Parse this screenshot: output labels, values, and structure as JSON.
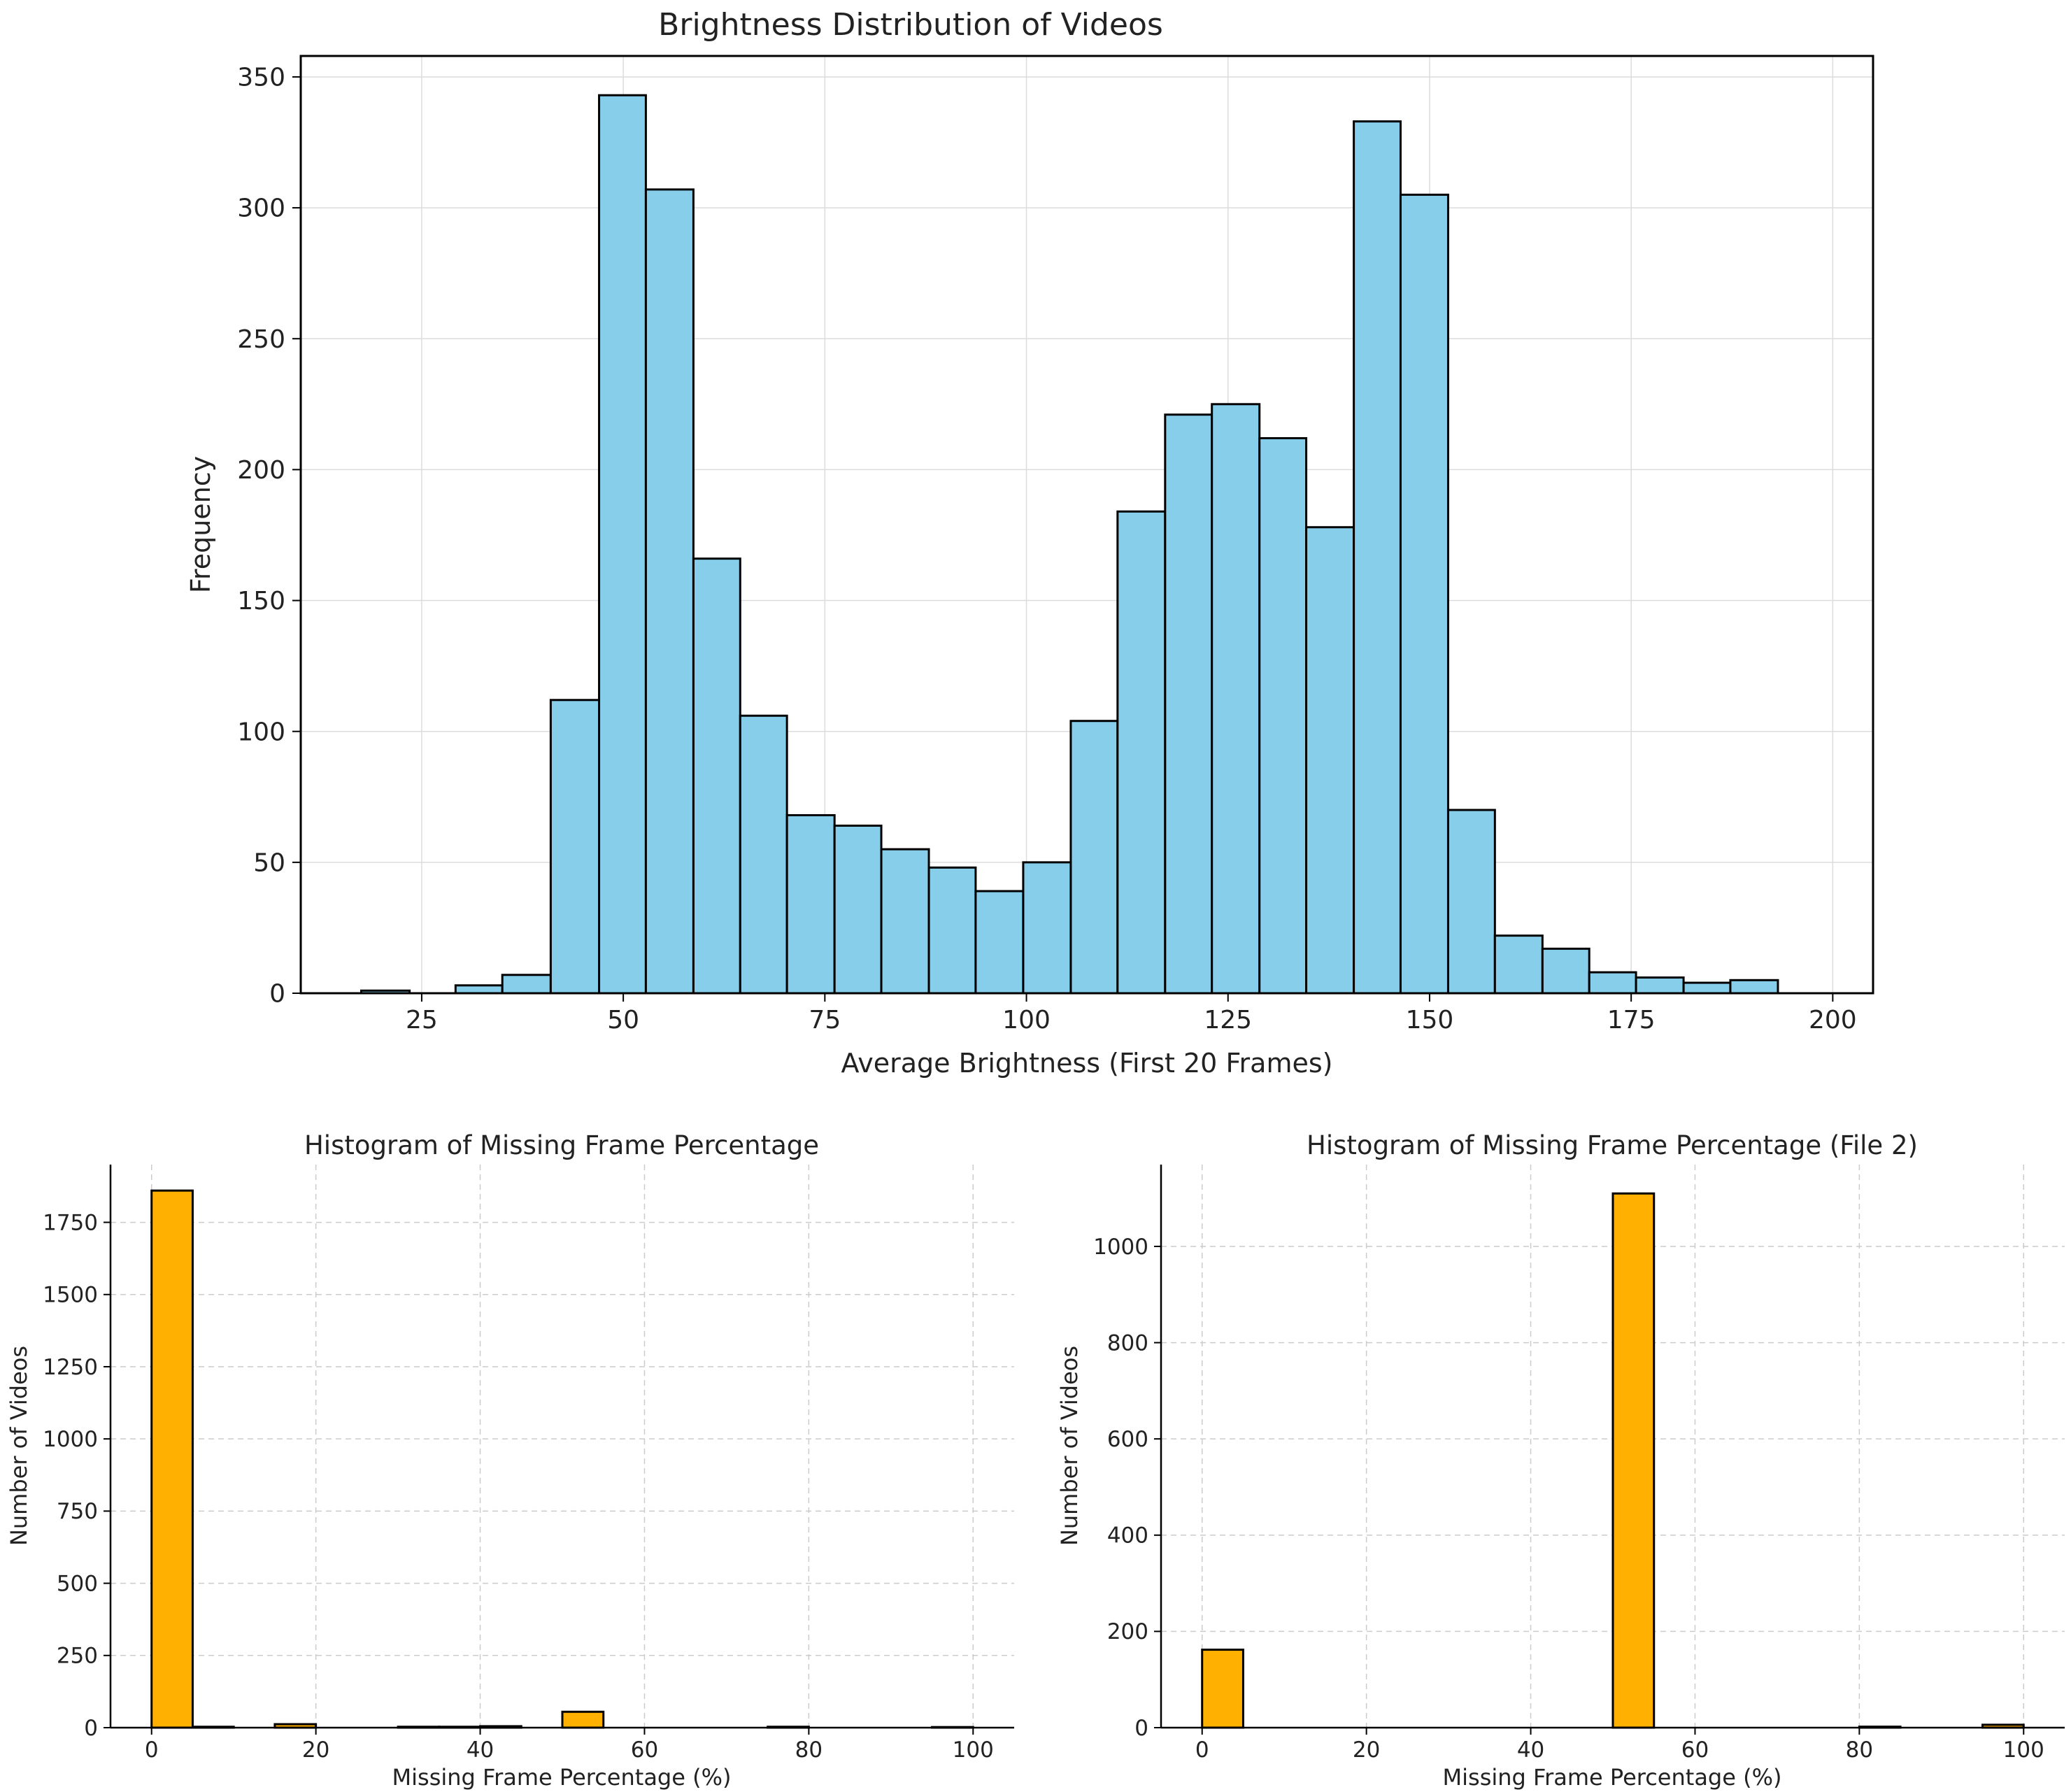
{
  "chart_data": [
    {
      "type": "bar",
      "title": "Brightness Distribution of Videos",
      "xlabel": "Average Brightness (First 20 Frames)",
      "ylabel": "Frequency",
      "xlim": [
        10,
        205
      ],
      "ylim": [
        0,
        358
      ],
      "xticks": [
        25,
        50,
        75,
        100,
        125,
        150,
        175,
        200
      ],
      "yticks": [
        0,
        50,
        100,
        150,
        200,
        250,
        300,
        350
      ],
      "grid": true,
      "bar_color": "#87CEEB",
      "edge_color": "#000000",
      "bins": [
        {
          "x0": 17.5,
          "x1": 23.5,
          "value": 1
        },
        {
          "x0": 29.2,
          "x1": 35.0,
          "value": 3
        },
        {
          "x0": 35.0,
          "x1": 41.0,
          "value": 7
        },
        {
          "x0": 41.0,
          "x1": 47.0,
          "value": 112
        },
        {
          "x0": 47.0,
          "x1": 52.8,
          "value": 343
        },
        {
          "x0": 52.8,
          "x1": 58.7,
          "value": 307
        },
        {
          "x0": 58.7,
          "x1": 64.5,
          "value": 166
        },
        {
          "x0": 64.5,
          "x1": 70.3,
          "value": 106
        },
        {
          "x0": 70.3,
          "x1": 76.2,
          "value": 68
        },
        {
          "x0": 76.2,
          "x1": 82.0,
          "value": 64
        },
        {
          "x0": 82.0,
          "x1": 87.9,
          "value": 55
        },
        {
          "x0": 87.9,
          "x1": 93.7,
          "value": 48
        },
        {
          "x0": 93.7,
          "x1": 99.6,
          "value": 39
        },
        {
          "x0": 99.6,
          "x1": 105.5,
          "value": 50
        },
        {
          "x0": 105.5,
          "x1": 111.3,
          "value": 104
        },
        {
          "x0": 111.3,
          "x1": 117.2,
          "value": 184
        },
        {
          "x0": 117.2,
          "x1": 123.0,
          "value": 221
        },
        {
          "x0": 123.0,
          "x1": 128.9,
          "value": 225
        },
        {
          "x0": 128.9,
          "x1": 134.7,
          "value": 212
        },
        {
          "x0": 134.7,
          "x1": 140.6,
          "value": 178
        },
        {
          "x0": 140.6,
          "x1": 146.4,
          "value": 333
        },
        {
          "x0": 146.4,
          "x1": 152.3,
          "value": 305
        },
        {
          "x0": 152.3,
          "x1": 158.1,
          "value": 70
        },
        {
          "x0": 158.1,
          "x1": 164.0,
          "value": 22
        },
        {
          "x0": 164.0,
          "x1": 169.8,
          "value": 17
        },
        {
          "x0": 169.8,
          "x1": 175.6,
          "value": 8
        },
        {
          "x0": 175.6,
          "x1": 181.5,
          "value": 6
        },
        {
          "x0": 181.5,
          "x1": 187.3,
          "value": 4
        },
        {
          "x0": 187.3,
          "x1": 193.2,
          "value": 5
        }
      ]
    },
    {
      "type": "bar",
      "title": "Histogram of Missing Frame Percentage",
      "xlabel": "Missing Frame Percentage (%)",
      "ylabel": "Number of Videos",
      "xlim": [
        -5,
        105
      ],
      "ylim": [
        0,
        1950
      ],
      "xticks": [
        0,
        20,
        40,
        60,
        80,
        100
      ],
      "yticks": [
        0,
        250,
        500,
        750,
        1000,
        1250,
        1500,
        1750
      ],
      "grid": true,
      "bar_color": "#FFB000",
      "edge_color": "#000000",
      "bins": [
        {
          "x0": 0,
          "x1": 5,
          "value": 1860
        },
        {
          "x0": 5,
          "x1": 10,
          "value": 3
        },
        {
          "x0": 15,
          "x1": 20,
          "value": 12
        },
        {
          "x0": 30,
          "x1": 35,
          "value": 3
        },
        {
          "x0": 35,
          "x1": 40,
          "value": 3
        },
        {
          "x0": 40,
          "x1": 45,
          "value": 5
        },
        {
          "x0": 50,
          "x1": 55,
          "value": 55
        },
        {
          "x0": 75,
          "x1": 80,
          "value": 3
        },
        {
          "x0": 95,
          "x1": 100,
          "value": 2
        }
      ]
    },
    {
      "type": "bar",
      "title": "Histogram of Missing Frame Percentage (File 2)",
      "xlabel": "Missing Frame Percentage (%)",
      "ylabel": "Number of Videos",
      "xlim": [
        -5,
        105
      ],
      "ylim": [
        0,
        1170
      ],
      "xticks": [
        0,
        20,
        40,
        60,
        80,
        100
      ],
      "yticks": [
        0,
        200,
        400,
        600,
        800,
        1000
      ],
      "grid": true,
      "bar_color": "#FFB000",
      "edge_color": "#000000",
      "bins": [
        {
          "x0": 0,
          "x1": 5,
          "value": 162
        },
        {
          "x0": 50,
          "x1": 55,
          "value": 1110
        },
        {
          "x0": 80,
          "x1": 85,
          "value": 2
        },
        {
          "x0": 95,
          "x1": 100,
          "value": 6
        }
      ]
    }
  ]
}
